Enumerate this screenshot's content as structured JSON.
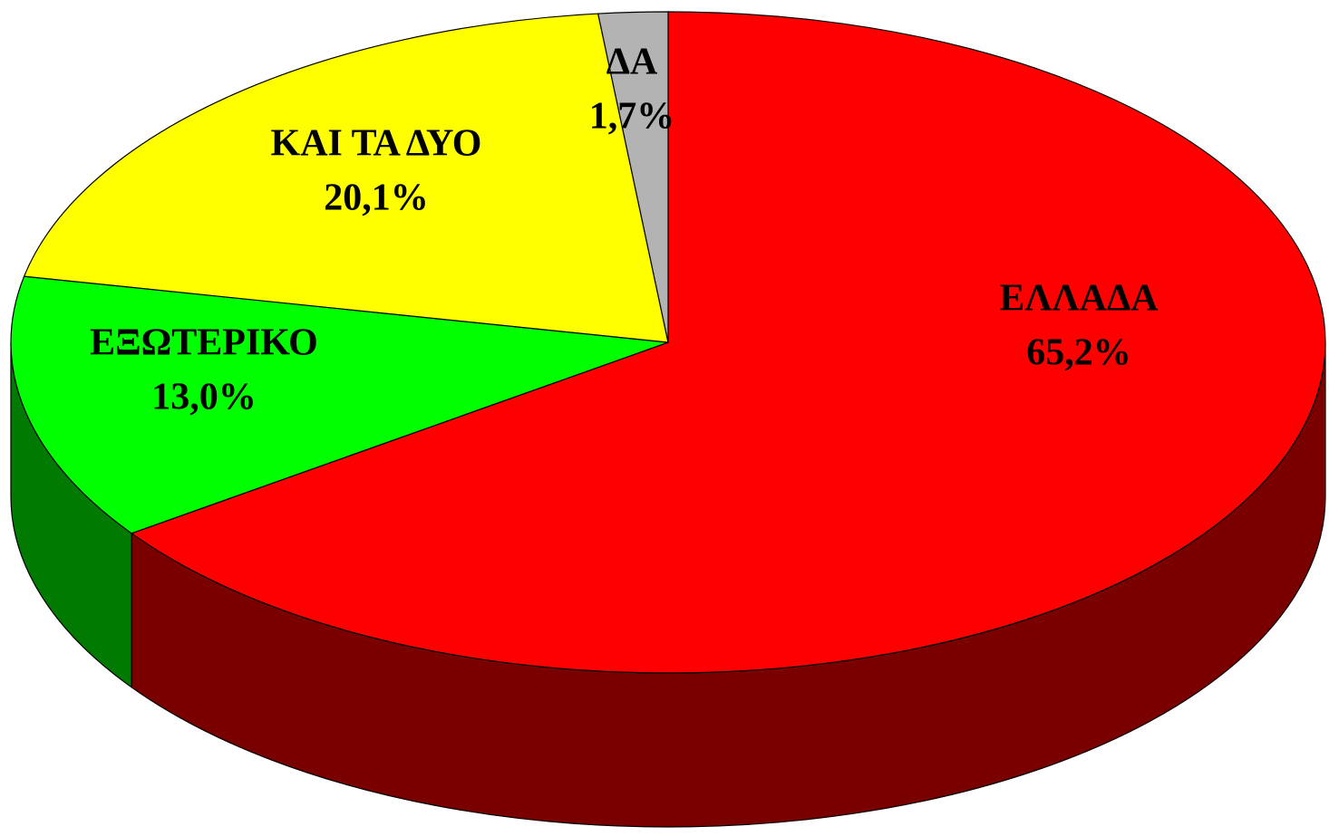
{
  "chart_data": {
    "type": "pie3d",
    "categories": [
      "ΕΛΛΑΔΑ",
      "ΕΞΩΤΕΡΙΚΟ",
      "ΚΑΙ ΤΑ ΔΥΟ",
      "ΔΑ"
    ],
    "values": [
      65.2,
      13.0,
      20.1,
      1.7
    ],
    "value_labels": [
      "65,2%",
      "13,0%",
      "20,1%",
      "1,7%"
    ],
    "colors": [
      "#ff0000",
      "#00ff00",
      "#ffff00",
      "#b3b3b3"
    ]
  }
}
